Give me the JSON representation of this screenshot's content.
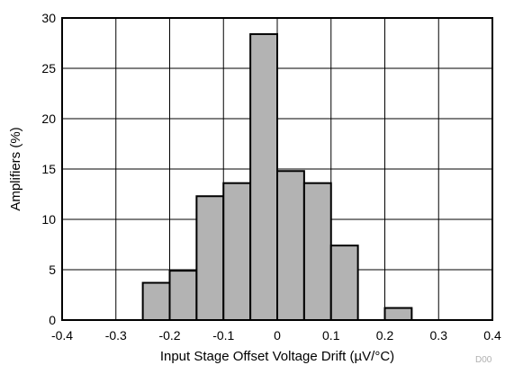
{
  "chart_data": {
    "type": "bar",
    "title": "",
    "xlabel": "Input Stage Offset Voltage Drift (µV/°C)",
    "ylabel": "Amplifiers (%)",
    "xlim": [
      -0.4,
      0.4
    ],
    "ylim": [
      0,
      30
    ],
    "grid": true,
    "legend": "none",
    "x_tick_labels": [
      "-0.4",
      "-0.3",
      "-0.2",
      "-0.1",
      "0",
      "0.1",
      "0.2",
      "0.3",
      "0.4"
    ],
    "y_tick_labels": [
      "0",
      "5",
      "10",
      "15",
      "20",
      "25",
      "30"
    ],
    "x_ticks": [
      -0.4,
      -0.3,
      -0.2,
      -0.1,
      0,
      0.1,
      0.2,
      0.3,
      0.4
    ],
    "y_ticks": [
      0,
      5,
      10,
      15,
      20,
      25,
      30
    ],
    "bin_width": 0.05,
    "bins": [
      {
        "start": -0.25,
        "end": -0.2,
        "value": 3.7
      },
      {
        "start": -0.2,
        "end": -0.15,
        "value": 4.9
      },
      {
        "start": -0.15,
        "end": -0.1,
        "value": 12.3
      },
      {
        "start": -0.1,
        "end": -0.05,
        "value": 13.6
      },
      {
        "start": -0.05,
        "end": 0.0,
        "value": 28.4
      },
      {
        "start": 0.0,
        "end": 0.05,
        "value": 14.8
      },
      {
        "start": 0.05,
        "end": 0.1,
        "value": 13.6
      },
      {
        "start": 0.1,
        "end": 0.15,
        "value": 7.4
      },
      {
        "start": 0.2,
        "end": 0.25,
        "value": 1.2
      }
    ],
    "colors": {
      "bar_fill": "#b3b3b3",
      "bar_stroke": "#000000",
      "grid": "#000000",
      "frame": "#000000",
      "background": "#ffffff"
    }
  },
  "watermark_text": "D00"
}
